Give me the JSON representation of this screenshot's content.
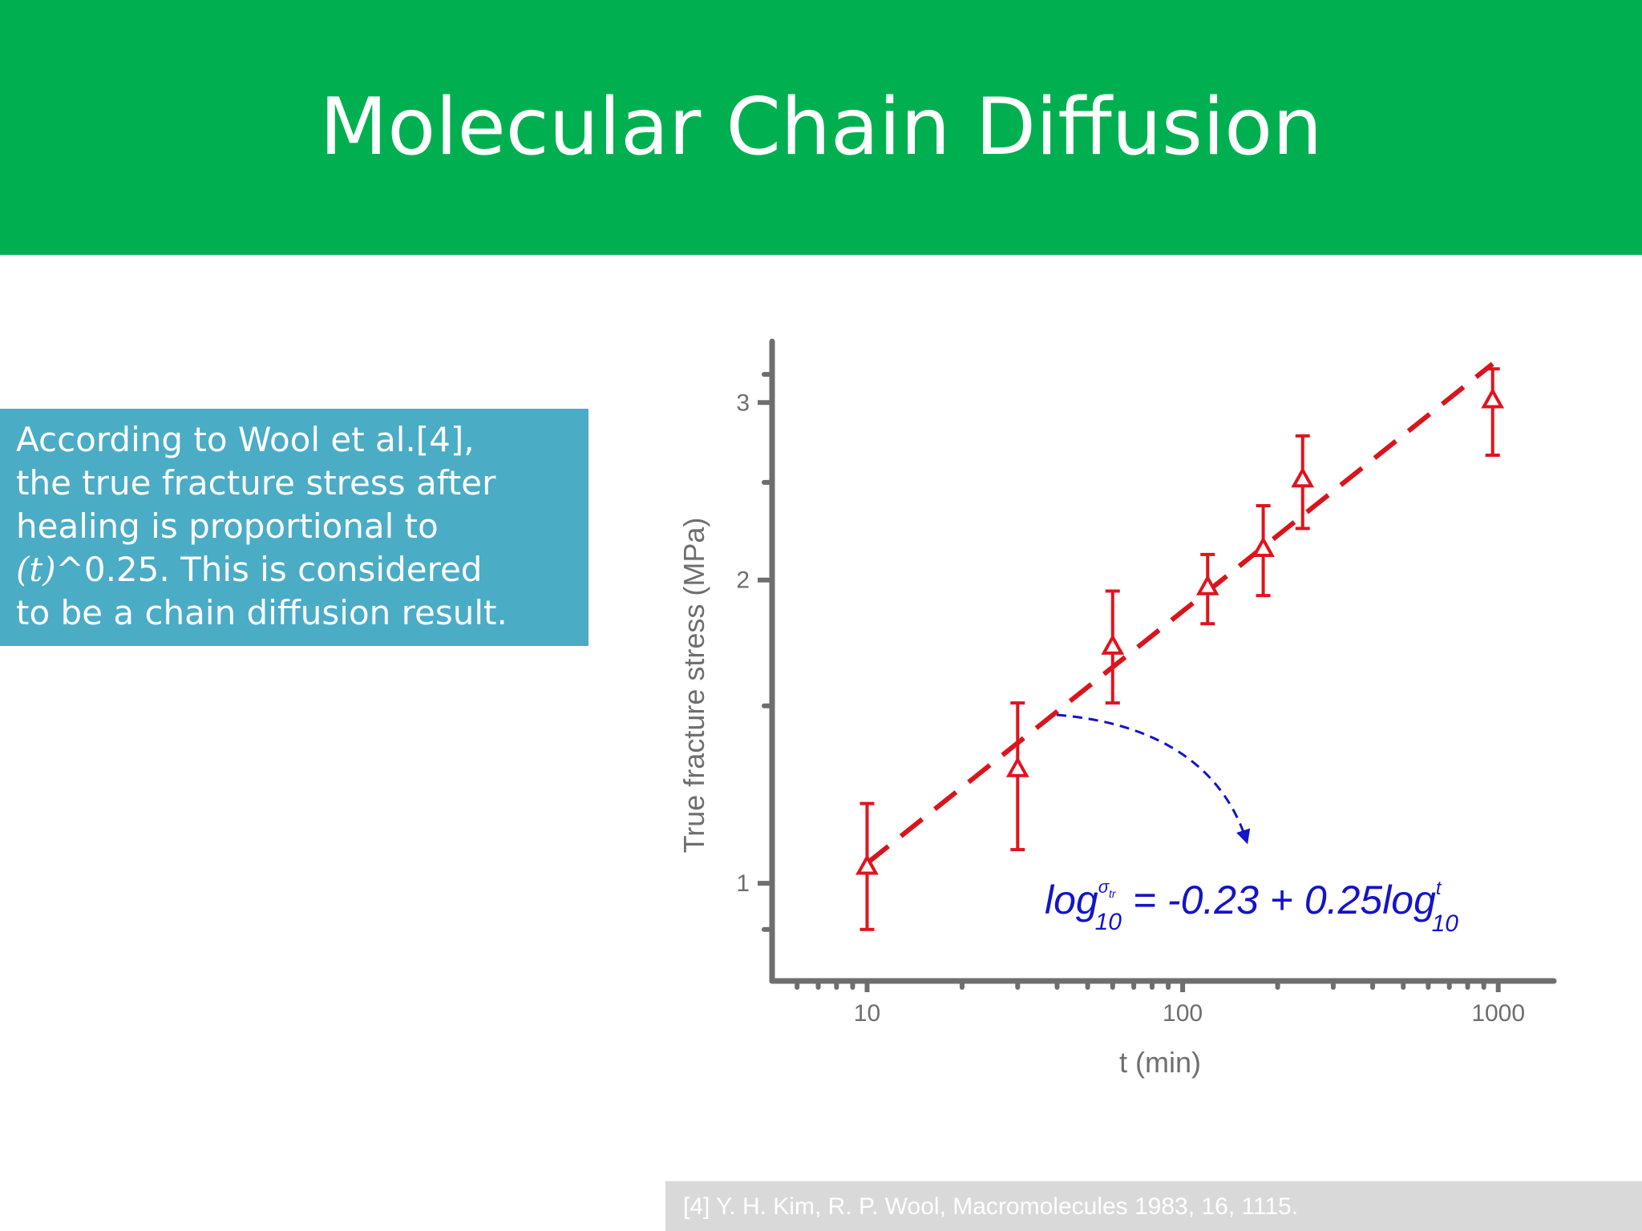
{
  "slide": {
    "title": "Molecular Chain Diffusion",
    "text_box": {
      "line1": "According to Wool et al.[4],",
      "line2": "the true fracture stress after",
      "line3": "healing is proportional to",
      "line4_math": "(t)",
      "line4_rest": "^0.25. This is considered",
      "line5": "to be a chain diffusion result."
    },
    "footnote": "[4] Y. H. Kim, R. P. Wool, Macromolecules 1983, 16, 1115."
  },
  "colors": {
    "title_bar": "#00b050",
    "text_box": "#4bacc6",
    "data": "#e0141e",
    "fit": "#d9141c",
    "equation": "#1414c8",
    "axis": "#6e6e6e",
    "footnote_bg": "#d9d9d9"
  },
  "chart_data": {
    "type": "scatter",
    "xlabel": "t (min)",
    "ylabel": "True fracture stress (MPa)",
    "x_scale": "log",
    "y_scale": "log",
    "xlim": [
      5,
      1500
    ],
    "ylim": [
      0.8,
      3.45
    ],
    "xticks": [
      10,
      100,
      1000
    ],
    "xtick_labels": [
      "10",
      "100",
      "1000"
    ],
    "yticks": [
      1,
      2,
      3
    ],
    "ytick_labels": [
      "1",
      "2",
      "3"
    ],
    "grid": false,
    "points": [
      {
        "x": 10,
        "y": 1.04,
        "err_low": 0.9,
        "err_high": 1.2
      },
      {
        "x": 30,
        "y": 1.3,
        "err_low": 1.08,
        "err_high": 1.51
      },
      {
        "x": 60,
        "y": 1.72,
        "err_low": 1.51,
        "err_high": 1.95
      },
      {
        "x": 120,
        "y": 1.97,
        "err_low": 1.81,
        "err_high": 2.12
      },
      {
        "x": 180,
        "y": 2.15,
        "err_low": 1.93,
        "err_high": 2.37
      },
      {
        "x": 240,
        "y": 2.52,
        "err_low": 2.25,
        "err_high": 2.78
      },
      {
        "x": 960,
        "y": 3.02,
        "err_low": 2.66,
        "err_high": 3.24
      }
    ],
    "fit": {
      "intercept": -0.23,
      "slope": 0.25,
      "x_start": 10,
      "x_end": 960
    },
    "equation": {
      "log1": "log",
      "sup1": "σ",
      "sup1_sub": "tr",
      "sub1": "10",
      "mid": " = -0.23 + 0.25log",
      "sup2": "t",
      "sub2": "10"
    },
    "annotation_arrow": "dashed curved arrow pointing from the fit line to the equation"
  }
}
